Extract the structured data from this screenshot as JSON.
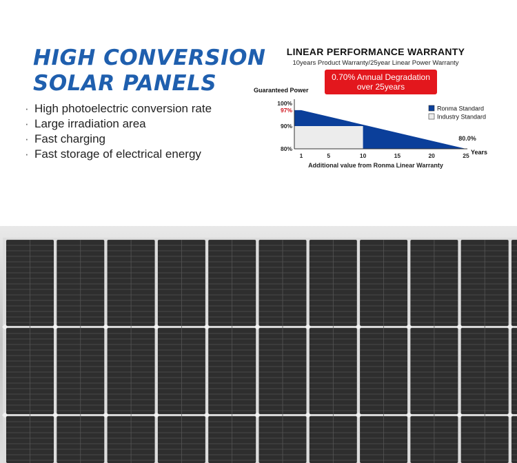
{
  "headline": {
    "line1": "HIGH CONVERSION",
    "line2": "SOLAR PANELS"
  },
  "features": [
    "High photoelectric conversion rate",
    "Large irradiation area",
    "Fast charging",
    "Fast storage of electrical energy"
  ],
  "bullet_char": "·",
  "chart_data": {
    "type": "area",
    "title": "LINEAR PERFORMANCE WARRANTY",
    "subtitle": "10years Product Warranty/25year Linear Power Warranty",
    "callout": [
      "0.70% Annual Degradation",
      "over 25years"
    ],
    "ylabel": "Guaranteed Power",
    "xlabel": "Additional value from Ronma Linear Warranty",
    "x_unit_label": "Years",
    "xlim": [
      0,
      25
    ],
    "ylim": [
      80,
      100
    ],
    "x_ticks": [
      1,
      5,
      10,
      15,
      20,
      25
    ],
    "y_ticks": [
      {
        "value": 100,
        "label": "100%"
      },
      {
        "value": 97,
        "label": "97%"
      },
      {
        "value": 90,
        "label": "90%"
      },
      {
        "value": 80,
        "label": "80%"
      }
    ],
    "end_label": "80.0%",
    "series": [
      {
        "name": "Ronma Standard",
        "color": "#0b3f9a",
        "x": [
          0,
          1,
          25
        ],
        "y": [
          97,
          97,
          80
        ]
      },
      {
        "name": "Industry Standard",
        "color": "#ececec",
        "x": [
          0,
          10,
          10,
          25
        ],
        "y": [
          90,
          90,
          80,
          80
        ]
      }
    ],
    "legend_position": "top-right",
    "highlight_color": "#d0121b"
  }
}
